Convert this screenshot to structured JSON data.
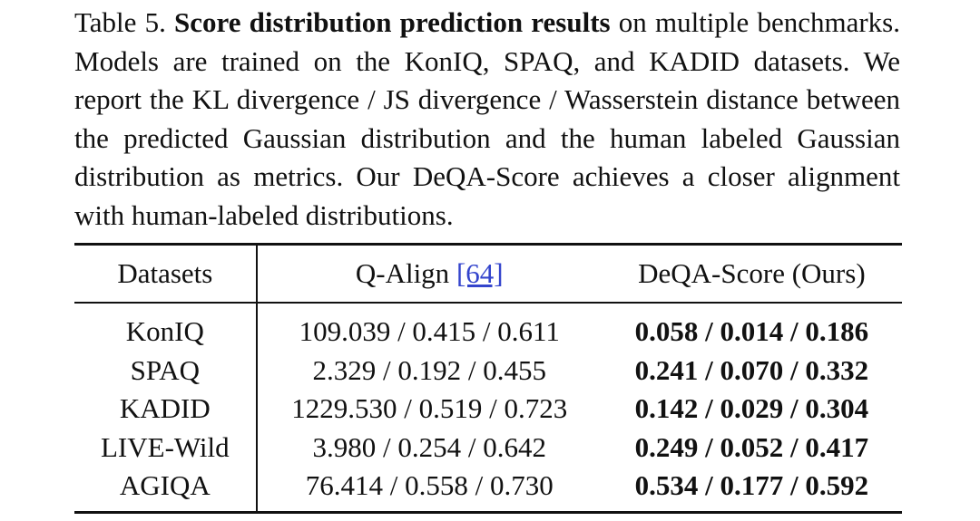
{
  "caption": {
    "label": "Table 5.",
    "bold": "Score distribution prediction results",
    "text": "on multiple benchmarks. Models are trained on the KonIQ, SPAQ, and KADID datasets. We report the KL divergence / JS divergence / Wasserstein distance between the predicted Gaussian distribution and the human labeled Gaussian distribution as metrics. Our DeQA-Score achieves a closer alignment with human-labeled distributions."
  },
  "table": {
    "headers": {
      "datasets": "Datasets",
      "qalign": "Q-Align",
      "qalign_ref": "[64]",
      "deqa": "DeQA-Score (Ours)"
    },
    "rows": [
      {
        "dataset": "KonIQ",
        "qalign": "109.039 / 0.415 / 0.611",
        "deqa": "0.058 / 0.014 / 0.186"
      },
      {
        "dataset": "SPAQ",
        "qalign": "2.329 / 0.192 / 0.455",
        "deqa": "0.241 / 0.070 / 0.332"
      },
      {
        "dataset": "KADID",
        "qalign": "1229.530 / 0.519 / 0.723",
        "deqa": "0.142 / 0.029 / 0.304"
      },
      {
        "dataset": "LIVE-Wild",
        "qalign": "3.980 / 0.254 / 0.642",
        "deqa": "0.249 / 0.052 / 0.417"
      },
      {
        "dataset": "AGIQA",
        "qalign": "76.414 / 0.558 / 0.730",
        "deqa": "0.534 / 0.177 / 0.592"
      }
    ]
  }
}
